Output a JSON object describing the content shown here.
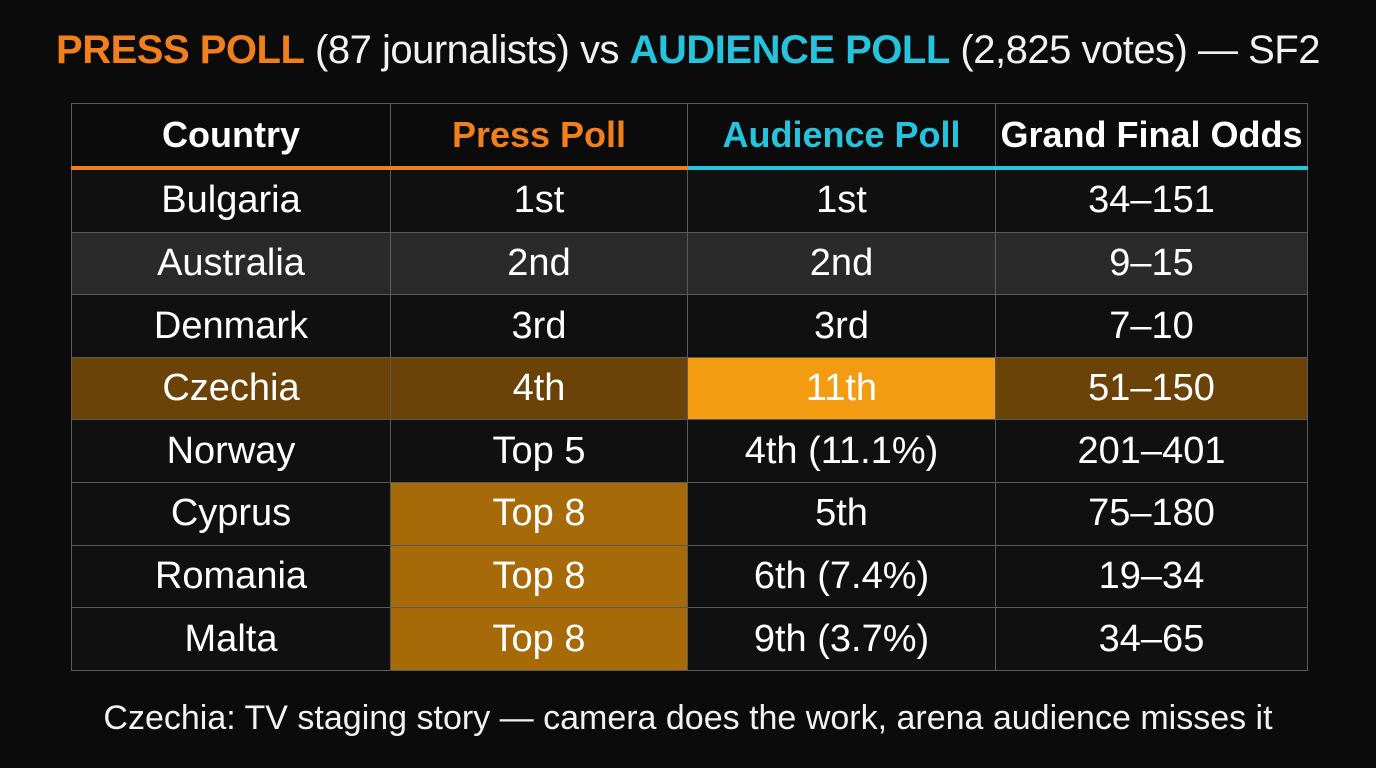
{
  "title": {
    "press_label": "PRESS POLL",
    "press_detail": "(87 journalists)",
    "vs": "vs",
    "audience_label": "AUDIENCE POLL",
    "audience_detail": "(2,825 votes) — SF2"
  },
  "colors": {
    "press": "#f07f1c",
    "audience": "#27c2dc",
    "highlight_row": "#6b4208",
    "highlight_bright": "#f39c12",
    "highlight_press": "#a76a08"
  },
  "chart_data": {
    "type": "table",
    "columns": [
      "Country",
      "Press Poll",
      "Audience Poll",
      "Grand Final Odds"
    ],
    "rows": [
      [
        "Bulgaria",
        "1st",
        "1st",
        "34–151"
      ],
      [
        "Australia",
        "2nd",
        "2nd",
        "9–15"
      ],
      [
        "Denmark",
        "3rd",
        "3rd",
        "7–10"
      ],
      [
        "Czechia",
        "4th",
        "11th",
        "51–150"
      ],
      [
        "Norway",
        "Top 5",
        "4th (11.1%)",
        "201–401"
      ],
      [
        "Cyprus",
        "Top 8",
        "5th",
        "75–180"
      ],
      [
        "Romania",
        "Top 8",
        "6th (7.4%)",
        "19–34"
      ],
      [
        "Malta",
        "Top 8",
        "9th (3.7%)",
        "34–65"
      ]
    ],
    "highlights": {
      "highlighted_row_country": "Czechia",
      "highlighted_press_cells": [
        "Cyprus",
        "Romania",
        "Malta"
      ]
    }
  },
  "footnote": "Czechia: TV staging story — camera does the work, arena audience misses it"
}
